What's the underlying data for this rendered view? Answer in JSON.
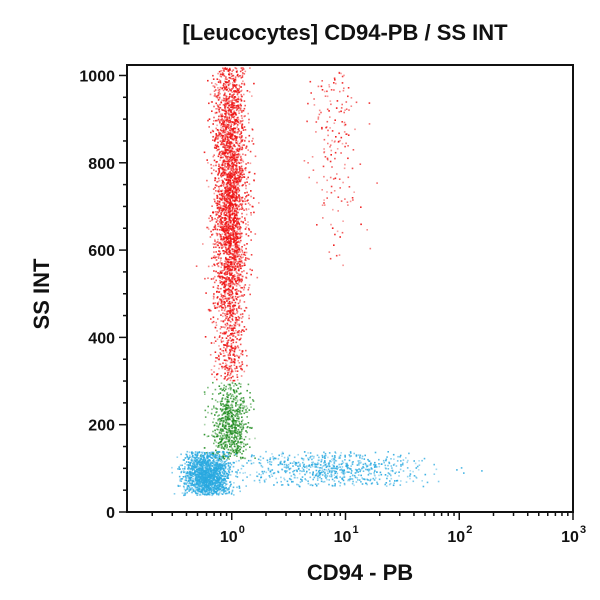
{
  "chart_data": {
    "type": "scatter",
    "title": "[Leucocytes] CD94-PB / SS INT",
    "xlabel": "CD94 - PB",
    "ylabel": "SS INT",
    "x_scale": "log",
    "xlim": [
      0.12,
      1000
    ],
    "ylim": [
      0,
      1024
    ],
    "x_ticks": [
      {
        "base": "10",
        "exp": "0",
        "value": 1
      },
      {
        "base": "10",
        "exp": "1",
        "value": 10
      },
      {
        "base": "10",
        "exp": "2",
        "value": 100
      },
      {
        "base": "10",
        "exp": "3",
        "value": 1000
      }
    ],
    "y_ticks": [
      {
        "label": "0",
        "value": 0
      },
      {
        "label": "200",
        "value": 200
      },
      {
        "label": "400",
        "value": 400
      },
      {
        "label": "600",
        "value": 600
      },
      {
        "label": "800",
        "value": 800
      },
      {
        "label": "1000",
        "value": 1000
      }
    ],
    "grid": false,
    "series": [
      {
        "color": "#ee1111",
        "clusters": [
          {
            "x_center": 0.95,
            "x_spread_decades": 0.07,
            "y_range": [
              300,
              1020
            ],
            "y_peak": 720,
            "count": 3200
          },
          {
            "x_center": 8,
            "x_spread_decades": 0.12,
            "y_range": [
              560,
              1010
            ],
            "y_peak": 880,
            "count": 180
          }
        ]
      },
      {
        "color": "#1f8c1f",
        "clusters": [
          {
            "x_center": 0.95,
            "x_spread_decades": 0.08,
            "y_range": [
              120,
              300
            ],
            "y_peak": 200,
            "count": 700
          }
        ]
      },
      {
        "color": "#29a9e0",
        "clusters": [
          {
            "x_center": 0.6,
            "x_spread_decades": 0.1,
            "y_range": [
              40,
              140
            ],
            "y_peak": 85,
            "count": 1600
          },
          {
            "x_center": 8,
            "x_spread_decades": 0.4,
            "y_range": [
              60,
              140
            ],
            "y_peak": 100,
            "count": 700
          }
        ]
      }
    ]
  }
}
